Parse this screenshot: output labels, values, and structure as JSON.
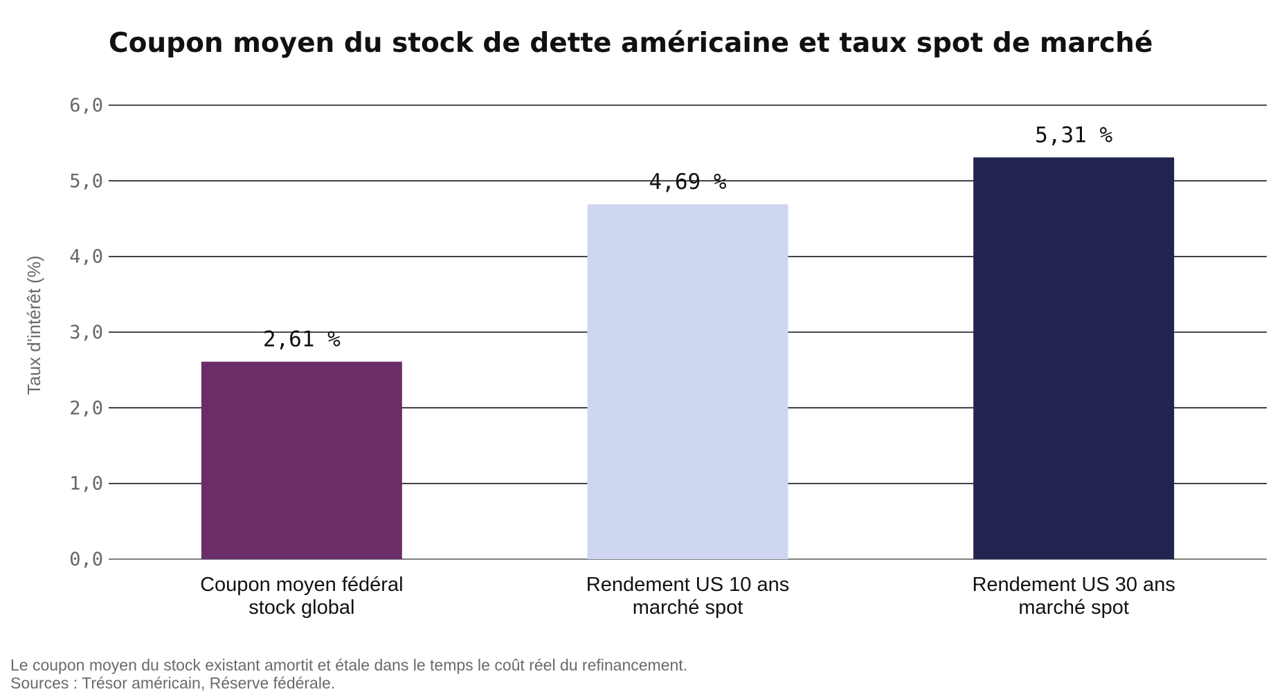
{
  "chart_data": {
    "type": "bar",
    "title": "Coupon moyen du stock de dette américaine et taux spot de marché",
    "ylabel": "Taux d'intérêt (%)",
    "xlabel": "",
    "ylim": [
      0,
      6
    ],
    "yticks": [
      "0,0",
      "1,0",
      "2,0",
      "3,0",
      "4,0",
      "5,0",
      "6,0"
    ],
    "ytick_values": [
      0,
      1,
      2,
      3,
      4,
      5,
      6
    ],
    "grid": true,
    "categories": [
      [
        "Coupon moyen fédéral",
        "stock global"
      ],
      [
        "Rendement US 10 ans",
        "marché spot"
      ],
      [
        "Rendement US 30 ans",
        "marché spot"
      ]
    ],
    "values": [
      2.61,
      4.69,
      5.31
    ],
    "value_labels": [
      "2,61 %",
      "4,69 %",
      "5,31 %"
    ],
    "colors": [
      "#6b2d67",
      "#cfd6ef",
      "#22234f"
    ]
  },
  "footnote": {
    "line1": "Le coupon moyen du stock existant amortit et étale dans le temps le coût réel du refinancement.",
    "line2": "Sources : Trésor américain, Réserve fédérale."
  }
}
